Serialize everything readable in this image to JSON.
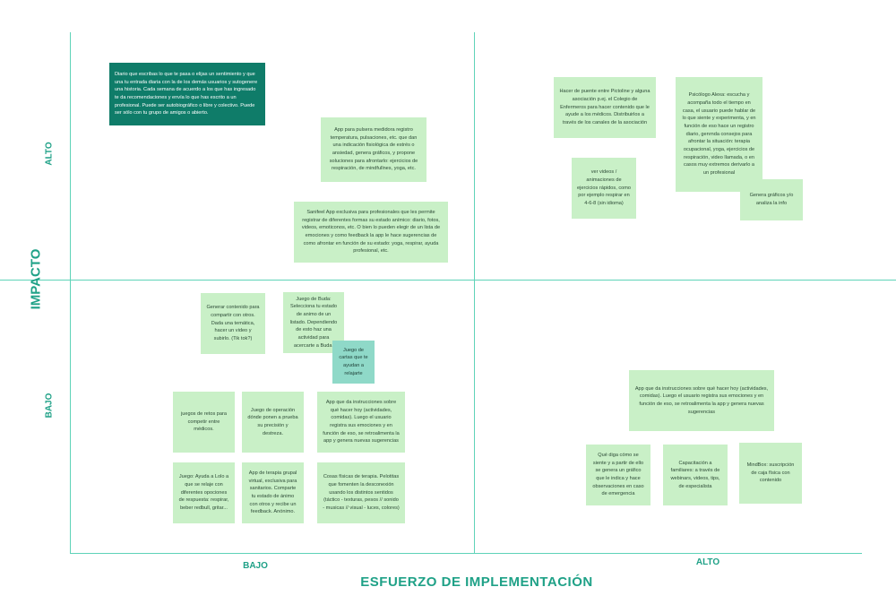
{
  "axes": {
    "x_title": "ESFUERZO DE IMPLEMENTACIÓN",
    "y_title": "IMPACTO",
    "x_low": "BAJO",
    "x_high": "ALTO",
    "y_high": "ALTO",
    "y_low": "BAJO"
  },
  "colors": {
    "note": "#c9f0c7",
    "note_dark": "#0f7c69",
    "note_teal": "#8fd9c8",
    "axis_text": "#1fa187",
    "grid_line": "#5fd3b8"
  },
  "notes": {
    "diario": "Diario que escribas lo que te pasa o elijas un sentimiento y que una tu entrada diaria con la de los demás usuarios y sutogenere una historia. Cada semana de acuerdo a los que has ingresado te da recomendaciones y envía lo que has escrito a un profesional. Puede ser autobiográfico o libre y colectivo. Puede ser sólo con tu grupo de amigos o abierto.",
    "pulsera": "App para pulsera medidora registro temperatura, pulsaciones, etc. que dan una indicación fisiológica de estrés o ansiedad, genera gráficos, y propone soluciones para afrontarlo: ejercicios de respiración, de mindfullnes, yoga, etc.",
    "sanifeel": "Sanifeel App exclusiva para profesionales que les permite registrar de diferentes formas su estado anímico: diario, fotos, videos, emoticonos, etc. O bien lo pueden elegir de un lista de emociones y como feedback la app le hace sugerencias de como afrontar en función de su estado: yoga, respirar, ayuda profesional, etc.",
    "pictoline": "Hacer de puente entre Pictoline y alguna asociación p.ej. el Colegio de Enfermeros para hacer contenido que le ayude a los médicos. Distribuirlos a través de los canales de la asociación",
    "videos": "ver videos / animaciones de ejercicios rápidos, como por ejemplo respirar en 4-6-8 (sin idioma)",
    "alexa": "Psicólogo Alexa: escucha y acompaña todo el tiempo en casa, el usuario puede hablar de lo que siente y experimenta, y en función de eso hace un registro diario, genrnda consejos para afrontar la situación: terapia ocupacional, yoga, ejercicios de respiración, video llamada, o en casos muy extremos derivarlo a un profesional",
    "graficos": "Genera gráficos y/o analiza la info",
    "contenido": "Generar contenido para compartir con otros. Dada una temática, hacer un video y subirlo. (Tik tok?)",
    "buda": "Juego de Buda: Selecciona tu estado de animo de un listado. Dependiendo de esto haz una actividad para acercarte a Buda.",
    "cartas": "Juego de cartas que te ayudan a relajarte",
    "retos": "juegos de retos para competir entre médicos.",
    "operacion": "Juego de operación dónde ponen a prueba su precisión y destreza.",
    "instrucciones_bajo": "App que da instrucciones sobre qué hacer hoy (actividades, comidas). Luego el usuario registra sus emociones y en función de eso, se retroalimenta la app y genera nuevas sugerencias",
    "lolo": "Juego: Ayuda a Lolo a que se relaje con diferentes opociones de respuesta: respirar, beber redbull, gritar...",
    "terapia": "App de terapia grupal virtual, exclusiva para sanitarios. Comparte tu estado de ánimo con otros y recibe un feedback. Anónimo.",
    "cosas": "Cosas físicas de terapia. Pelotitas que fomenten la desconexión usando los distintos sentidos (táctico - texturas, pesos // sonido - musicas // visual - luces, colores)",
    "instrucciones_alto": "App que da instrucciones sobre qué hacer hoy (actividades, comidas). Luego el usuario registra sus emociones y en función de eso, se retroalimenta la app y genera nuevas sugerencias",
    "grafico_siente": "Qué diga cómo se siente y a partir de ello se genera un gráfico que le indica y hace observaciones en caso de emergencia",
    "capacitacion": "Capacitación a familiares: a través de webinars, videos, tips, de especialista",
    "mindbox": "MindBox: suscripción de caja física con contenido"
  }
}
